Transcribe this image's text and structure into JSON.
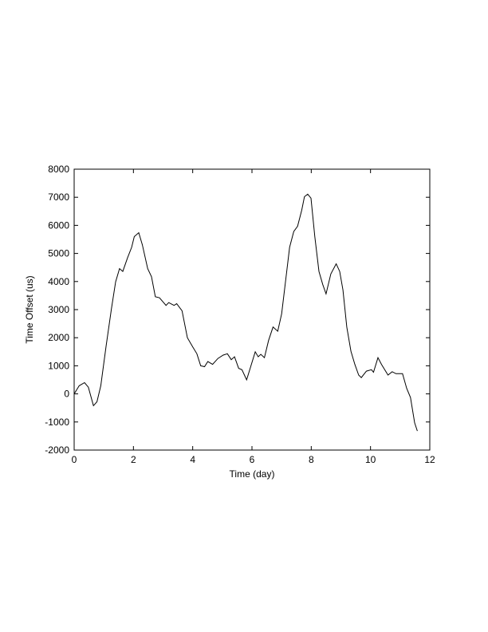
{
  "chart_data": {
    "type": "line",
    "title": "",
    "xlabel": "Time (day)",
    "ylabel": "Time Offset (us)",
    "xlim": [
      0,
      12
    ],
    "ylim": [
      -2000,
      8000
    ],
    "xticks": [
      0,
      2,
      4,
      6,
      8,
      10,
      12
    ],
    "yticks": [
      -2000,
      -1000,
      0,
      1000,
      2000,
      3000,
      4000,
      5000,
      6000,
      7000,
      8000
    ],
    "grid": false,
    "line_color": "#000000",
    "series": [
      {
        "x": [
          0.0,
          0.17,
          0.35,
          0.48,
          0.65,
          0.77,
          0.9,
          1.08,
          1.26,
          1.4,
          1.53,
          1.64,
          1.8,
          1.94,
          2.03,
          2.18,
          2.3,
          2.48,
          2.61,
          2.74,
          2.88,
          3.1,
          3.19,
          3.37,
          3.46,
          3.64,
          3.82,
          4.0,
          4.14,
          4.27,
          4.4,
          4.51,
          4.67,
          4.85,
          5.03,
          5.17,
          5.3,
          5.41,
          5.55,
          5.66,
          5.82,
          6.11,
          6.21,
          6.3,
          6.42,
          6.56,
          6.71,
          6.87,
          7.0,
          7.14,
          7.27,
          7.41,
          7.54,
          7.68,
          7.77,
          7.88,
          7.99,
          8.12,
          8.26,
          8.39,
          8.5,
          8.66,
          8.84,
          8.96,
          9.07,
          9.2,
          9.34,
          9.47,
          9.6,
          9.69,
          9.86,
          10.03,
          10.1,
          10.25,
          10.37,
          10.59,
          10.73,
          10.86,
          11.08,
          11.22,
          11.35,
          11.49,
          11.58
        ],
        "y": [
          0,
          290,
          400,
          240,
          -420,
          -280,
          290,
          1710,
          3040,
          3990,
          4460,
          4360,
          4840,
          5220,
          5600,
          5740,
          5310,
          4460,
          4170,
          3460,
          3420,
          3150,
          3250,
          3150,
          3210,
          2960,
          2000,
          1670,
          1430,
          1000,
          970,
          1150,
          1050,
          1260,
          1380,
          1430,
          1220,
          1320,
          910,
          860,
          500,
          1500,
          1320,
          1410,
          1290,
          1900,
          2380,
          2230,
          2850,
          4080,
          5220,
          5780,
          5970,
          6540,
          7020,
          7110,
          6970,
          5600,
          4360,
          3890,
          3560,
          4270,
          4630,
          4360,
          3700,
          2380,
          1520,
          1050,
          670,
          580,
          810,
          860,
          770,
          1290,
          1050,
          670,
          790,
          720,
          720,
          200,
          -130,
          -1030,
          -1320
        ]
      }
    ]
  }
}
